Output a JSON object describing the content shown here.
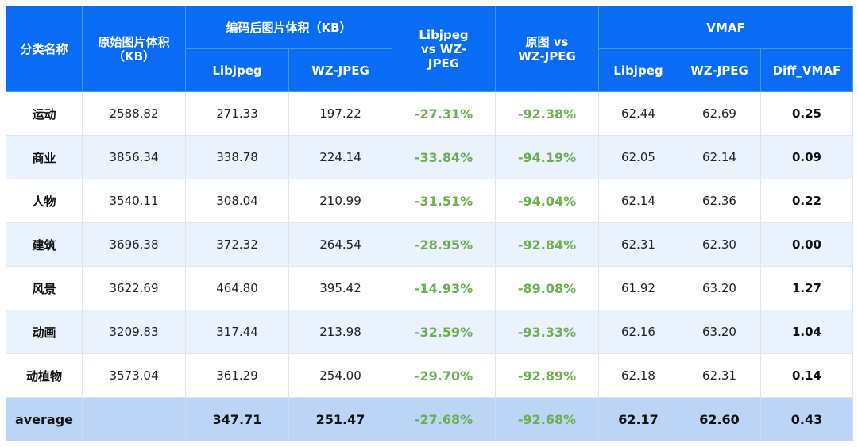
{
  "header": {
    "category": "分类名称",
    "original_size": "原始图片体积（KB）",
    "encoded_size_group": "编码后图片体积（KB）",
    "encoded_libjpeg": "Libjpeg",
    "encoded_wzjpeg": "WZ-JPEG",
    "libjpeg_vs_wz": "Libjpeg vs WZ-JPEG",
    "orig_vs_wz": "原图 vs WZ-JPEG",
    "vmaf_group": "VMAF",
    "vmaf_libjpeg": "Libjpeg",
    "vmaf_wzjpeg": "WZ-JPEG",
    "vmaf_diff": "Diff_VMAF"
  },
  "rows": [
    {
      "category": "运动",
      "original": "2588.82",
      "enc_lib": "271.33",
      "enc_wz": "197.22",
      "lib_vs_wz": "-27.31%",
      "orig_vs_wz": "-92.38%",
      "vmaf_lib": "62.44",
      "vmaf_wz": "62.69",
      "diff": "0.25"
    },
    {
      "category": "商业",
      "original": "3856.34",
      "enc_lib": "338.78",
      "enc_wz": "224.14",
      "lib_vs_wz": "-33.84%",
      "orig_vs_wz": "-94.19%",
      "vmaf_lib": "62.05",
      "vmaf_wz": "62.14",
      "diff": "0.09"
    },
    {
      "category": "人物",
      "original": "3540.11",
      "enc_lib": "308.04",
      "enc_wz": "210.99",
      "lib_vs_wz": "-31.51%",
      "orig_vs_wz": "-94.04%",
      "vmaf_lib": "62.14",
      "vmaf_wz": "62.36",
      "diff": "0.22"
    },
    {
      "category": "建筑",
      "original": "3696.38",
      "enc_lib": "372.32",
      "enc_wz": "264.54",
      "lib_vs_wz": "-28.95%",
      "orig_vs_wz": "-92.84%",
      "vmaf_lib": "62.31",
      "vmaf_wz": "62.30",
      "diff": "0.00"
    },
    {
      "category": "风景",
      "original": "3622.69",
      "enc_lib": "464.80",
      "enc_wz": "395.42",
      "lib_vs_wz": "-14.93%",
      "orig_vs_wz": "-89.08%",
      "vmaf_lib": "61.92",
      "vmaf_wz": "63.20",
      "diff": "1.27"
    },
    {
      "category": "动画",
      "original": "3209.83",
      "enc_lib": "317.44",
      "enc_wz": "213.98",
      "lib_vs_wz": "-32.59%",
      "orig_vs_wz": "-93.33%",
      "vmaf_lib": "62.16",
      "vmaf_wz": "63.20",
      "diff": "1.04"
    },
    {
      "category": "动植物",
      "original": "3573.04",
      "enc_lib": "361.29",
      "enc_wz": "254.00",
      "lib_vs_wz": "-29.70%",
      "orig_vs_wz": "-92.89%",
      "vmaf_lib": "62.18",
      "vmaf_wz": "62.31",
      "diff": "0.14"
    }
  ],
  "average": {
    "category": "average",
    "original": "",
    "enc_lib": "347.71",
    "enc_wz": "251.47",
    "lib_vs_wz": "-27.68%",
    "orig_vs_wz": "-92.68%",
    "vmaf_lib": "62.17",
    "vmaf_wz": "62.60",
    "diff": "0.43"
  },
  "colors": {
    "header_bg": "#0a6cf5",
    "alt_row_bg": "#e9f2fd",
    "avg_row_bg": "#bcd5f6",
    "pct_green": "#6ab04c"
  }
}
